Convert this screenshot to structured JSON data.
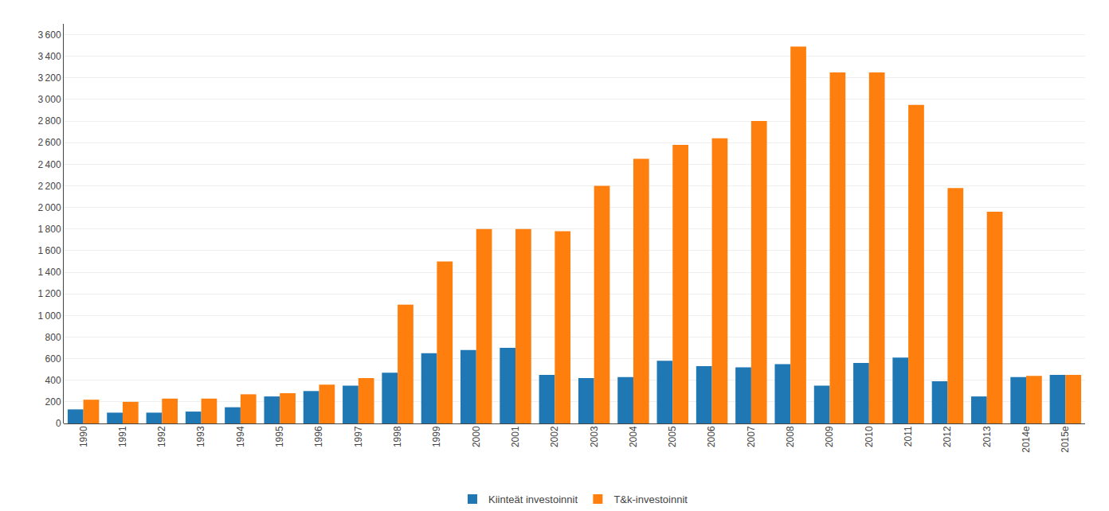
{
  "chart_data": {
    "type": "bar",
    "categories": [
      "1990",
      "1991",
      "1992",
      "1993",
      "1994",
      "1995",
      "1996",
      "1997",
      "1998",
      "1999",
      "2000",
      "2001",
      "2002",
      "2003",
      "2004",
      "2005",
      "2006",
      "2007",
      "2008",
      "2009",
      "2010",
      "2011",
      "2012",
      "2013",
      "2014e",
      "2015e"
    ],
    "series": [
      {
        "name": "Kiinteät investoinnit",
        "values": [
          130,
          100,
          100,
          110,
          150,
          250,
          300,
          350,
          470,
          650,
          680,
          700,
          450,
          420,
          430,
          580,
          530,
          520,
          550,
          350,
          560,
          610,
          390,
          250,
          430,
          450
        ]
      },
      {
        "name": "T&k-investoinnit",
        "values": [
          220,
          200,
          230,
          230,
          270,
          280,
          360,
          420,
          1100,
          1500,
          1800,
          1800,
          1780,
          2200,
          2450,
          2580,
          2640,
          2800,
          3490,
          3250,
          3250,
          2950,
          2180,
          1960,
          440,
          450
        ]
      }
    ],
    "ylim": [
      0,
      3700
    ],
    "yticks": [
      0,
      200,
      400,
      600,
      800,
      {
        "value": 1000,
        "label": "1 000"
      },
      {
        "value": 1200,
        "label": "1 200"
      },
      {
        "value": 1400,
        "label": "1 400"
      },
      {
        "value": 1600,
        "label": "1 600"
      },
      {
        "value": 1800,
        "label": "1 800"
      },
      {
        "value": 2000,
        "label": "2 000"
      },
      {
        "value": 2200,
        "label": "2 200"
      },
      {
        "value": 2400,
        "label": "2 400"
      },
      {
        "value": 2600,
        "label": "2 600"
      },
      {
        "value": 2800,
        "label": "2 800"
      },
      {
        "value": 3000,
        "label": "3 000"
      },
      {
        "value": 3200,
        "label": "3 200"
      },
      {
        "value": 3400,
        "label": "3 400"
      },
      {
        "value": 3600,
        "label": "3 600"
      }
    ],
    "grid": true,
    "legend": "bottom"
  }
}
